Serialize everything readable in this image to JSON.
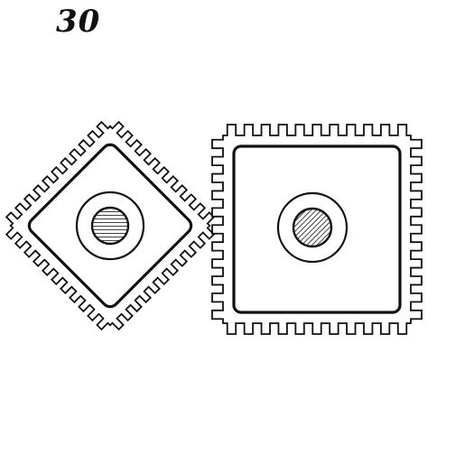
{
  "figure": {
    "number": "30"
  },
  "gears": [
    {
      "name": "rotated-square-gear",
      "teeth_per_side": 11
    },
    {
      "name": "square-gear",
      "teeth_per_side": 11
    }
  ],
  "colors": {
    "ink": "#111111",
    "paper": "#ffffff"
  }
}
